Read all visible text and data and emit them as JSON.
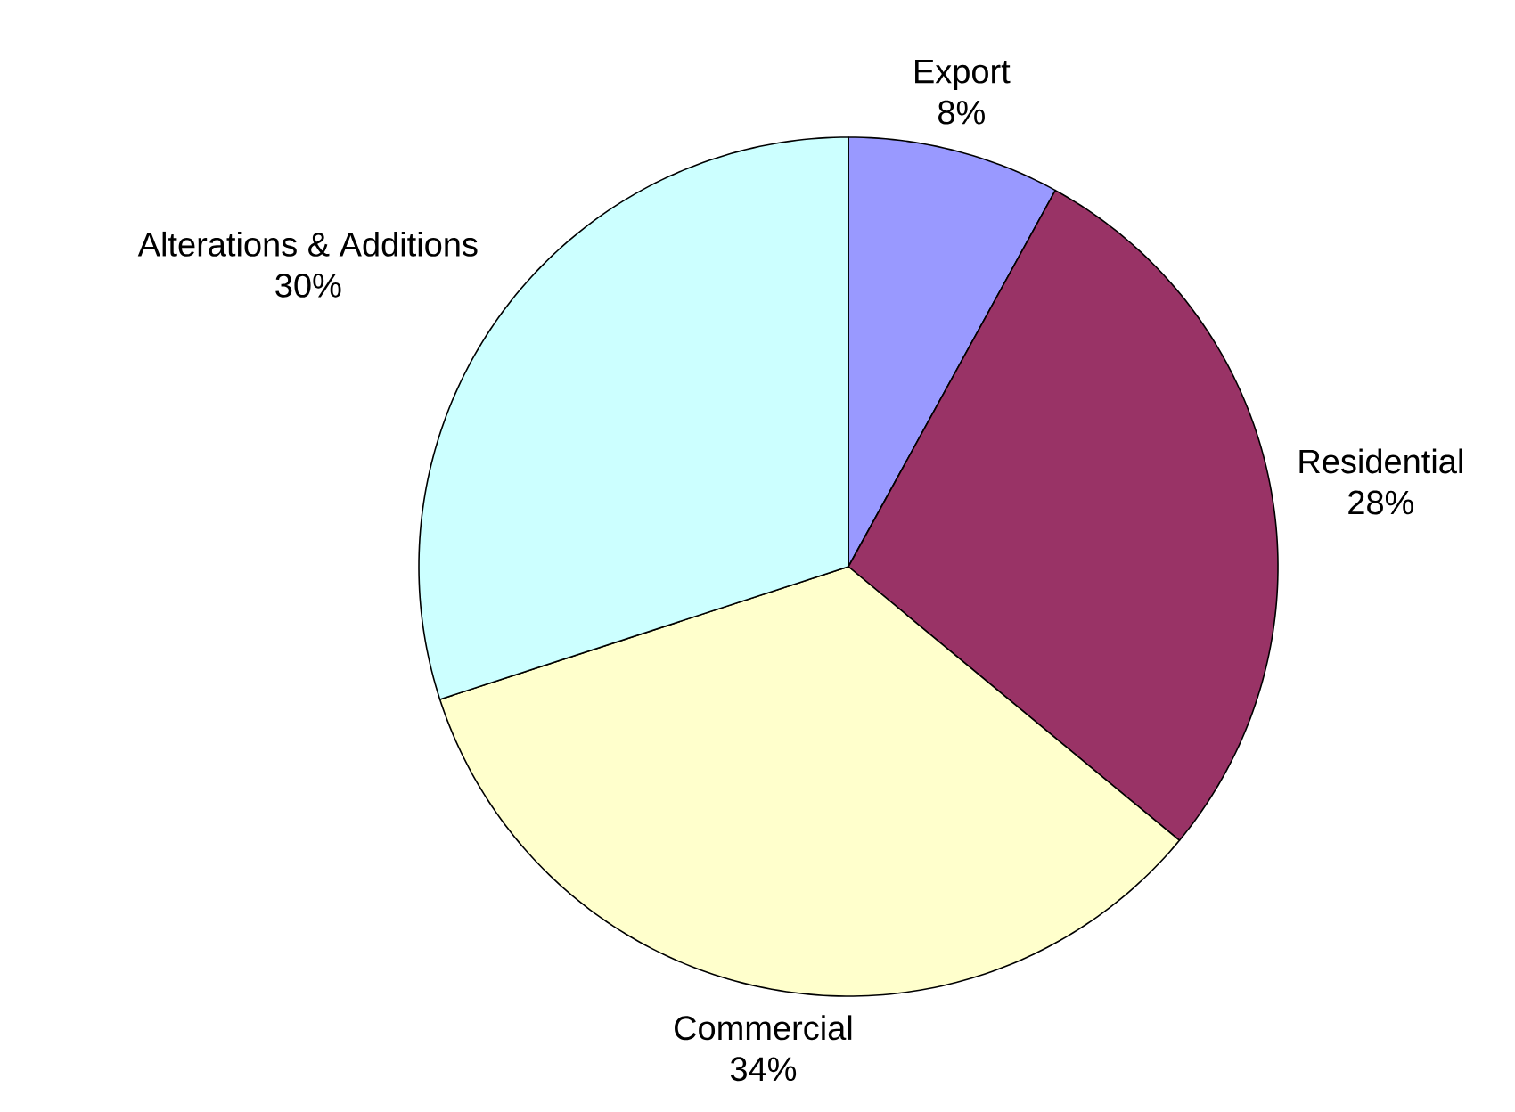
{
  "chart_data": {
    "type": "pie",
    "categories": [
      "Export",
      "Residential",
      "Commercial",
      "Alterations & Additions"
    ],
    "values": [
      8,
      28,
      34,
      30
    ],
    "value_labels": [
      "8%",
      "28%",
      "34%",
      "30%"
    ],
    "colors": [
      "#9999ff",
      "#993366",
      "#ffffcc",
      "#ccffff"
    ]
  }
}
